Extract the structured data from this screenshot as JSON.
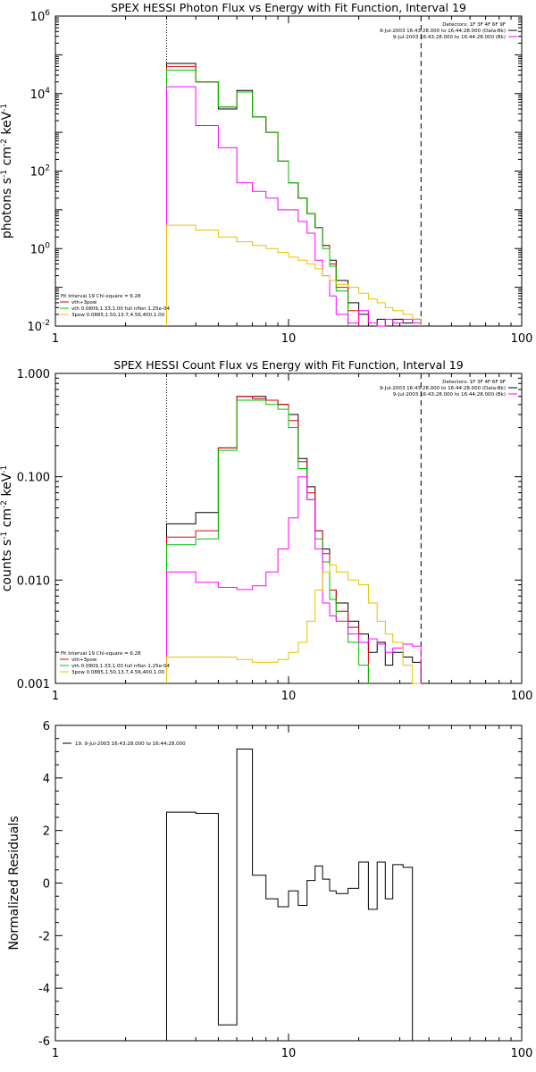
{
  "chart_data": [
    {
      "type": "line",
      "title": "SPEX HESSI Photon Flux vs Energy with Fit Function, Interval 19",
      "ylabel": "photons s^-1 cm^-2 keV^-1",
      "xscale": "log",
      "yscale": "log",
      "xlim": [
        1,
        100
      ],
      "ylim": [
        0.01,
        1000000
      ],
      "xticks": [
        1,
        10,
        100
      ],
      "xtick_labels": [
        "1",
        "10",
        "100"
      ],
      "yticks": [
        0.01,
        1,
        100,
        10000,
        1000000
      ],
      "ytick_labels": [
        "10^-2",
        "10^0",
        "10^2",
        "10^4",
        "10^6"
      ],
      "vlines": [
        {
          "x": 3.0,
          "style": "dotted"
        },
        {
          "x": 37.0,
          "style": "dashed"
        }
      ],
      "legend_top": {
        "lines": [
          "Detectors: 1F 3F 4F 6F 9F",
          "9-Jul-2003 16:43:28.000 to 16:44:28.000 (Data-Bk)",
          "9-Jul-2003 16:43:28.000 to 16:44:28.000 (Bk)"
        ],
        "colors": [
          "#000000",
          "#ff00ff"
        ]
      },
      "legend_bottom": {
        "lines": [
          "Fit Interval 19   Chi-square = 6.28",
          "vth+3pow",
          "vth 0.0809,1.33,1.00  full nflon 1.25e-04",
          "3pow 0.0885,1.50,13.7,4.56,400,1.00"
        ],
        "colors": [
          "#e00000",
          "#00c000",
          "#e8c000"
        ]
      },
      "energy_edges": [
        3.0,
        4.0,
        5.0,
        6.0,
        7.0,
        8.0,
        9.0,
        10.0,
        11.0,
        12.0,
        13.0,
        14.0,
        15.0,
        16.0,
        18.0,
        20.0,
        22.0,
        24.0,
        26.0,
        28.0,
        31.0,
        34.0,
        37.0
      ],
      "series": [
        {
          "values": [
            60000,
            20000,
            4000,
            12000,
            2500,
            1000,
            180,
            50,
            20,
            8,
            3.5,
            1.2,
            0.5,
            0.15,
            0.04,
            0.02,
            0.008,
            0.015,
            0.01,
            0.015,
            0.012,
            0.015
          ],
          "color": "#000000"
        },
        {
          "values": [
            50000,
            20000,
            4500,
            11000,
            2500,
            1000,
            180,
            50,
            20,
            8,
            3.5,
            1.2,
            0.4,
            0.1,
            0.025,
            null,
            null,
            null,
            null,
            null,
            null,
            null
          ],
          "color": "#e00000"
        },
        {
          "values": [
            40000,
            20000,
            4500,
            11000,
            2500,
            1000,
            180,
            50,
            20,
            8,
            3.5,
            1.0,
            0.35,
            0.08,
            null,
            null,
            null,
            null,
            null,
            null,
            null,
            null
          ],
          "color": "#00c000"
        },
        {
          "values": [
            15000,
            1500,
            400,
            50,
            30,
            20,
            10,
            10,
            5,
            2.5,
            0.5,
            0.2,
            0.06,
            0.02,
            0.012,
            0.025,
            0.012,
            0.01,
            0.015,
            0.012,
            0.015,
            0.012
          ],
          "color": "#ff00ff"
        },
        {
          "values": [
            4,
            3,
            2,
            1.5,
            1.2,
            1,
            0.8,
            0.6,
            0.5,
            0.4,
            0.3,
            0.2,
            0.15,
            0.12,
            0.1,
            0.07,
            0.05,
            0.04,
            0.03,
            0.025,
            0.02,
            0.015
          ],
          "color": "#e8c000"
        }
      ]
    },
    {
      "type": "line",
      "title": "SPEX HESSI Count Flux vs Energy with Fit Function, Interval 19",
      "ylabel": "counts s^-1 cm^-2 keV^-1",
      "xscale": "log",
      "yscale": "log",
      "xlim": [
        1,
        100
      ],
      "ylim": [
        0.001,
        1.0
      ],
      "xticks": [
        1,
        10,
        100
      ],
      "xtick_labels": [
        "1",
        "10",
        "100"
      ],
      "yticks": [
        0.001,
        0.01,
        0.1,
        1.0
      ],
      "ytick_labels": [
        "0.001",
        "0.010",
        "0.100",
        "1.000"
      ],
      "vlines": [
        {
          "x": 3.0,
          "style": "dotted"
        },
        {
          "x": 37.0,
          "style": "dashed"
        }
      ],
      "legend_top": {
        "lines": [
          "Detectors: 1F 3F 4F 6F 9F",
          "9-Jul-2003 16:43:28.000 to 16:44:28.000 (Data-Bk)",
          "9-Jul-2003 16:43:28.000 to 16:44:28.000 (Bk)"
        ],
        "colors": [
          "#000000",
          "#ff00ff"
        ]
      },
      "legend_bottom": {
        "lines": [
          "Fit Interval 19   Chi-square = 6.28",
          "vth+3pow",
          "vth 0.0809,1.33,1.00  full nflon 1.25e-04",
          "3pow 0.0885,1.50,13.7,4.56,400,1.00"
        ],
        "colors": [
          "#e00000",
          "#00c000",
          "#e8c000"
        ]
      },
      "energy_edges": [
        3.0,
        4.0,
        5.0,
        6.0,
        7.0,
        8.0,
        9.0,
        10.0,
        11.0,
        12.0,
        13.0,
        14.0,
        15.0,
        16.0,
        18.0,
        20.0,
        22.0,
        24.0,
        26.0,
        28.0,
        31.0,
        34.0,
        37.0
      ],
      "series": [
        {
          "values": [
            0.035,
            0.045,
            0.19,
            0.6,
            0.6,
            0.55,
            0.5,
            0.4,
            0.15,
            0.08,
            0.03,
            0.02,
            0.008,
            0.006,
            0.004,
            0.003,
            0.002,
            0.0025,
            0.0015,
            0.002,
            0.0018,
            0.0016
          ],
          "color": "#000000"
        },
        {
          "values": [
            0.026,
            0.03,
            0.19,
            0.6,
            0.57,
            0.55,
            0.5,
            0.35,
            0.14,
            0.07,
            0.03,
            0.018,
            0.008,
            0.005,
            0.0035,
            0.0025,
            null,
            null,
            null,
            null,
            null,
            null
          ],
          "color": "#e00000"
        },
        {
          "values": [
            0.022,
            0.025,
            0.18,
            0.55,
            0.55,
            0.5,
            0.45,
            0.3,
            0.12,
            0.06,
            0.025,
            0.015,
            0.0065,
            0.004,
            0.0025,
            0.0015,
            null,
            null,
            null,
            null,
            null,
            null
          ],
          "color": "#00c000"
        },
        {
          "values": [
            0.012,
            0.0095,
            0.0085,
            0.0081,
            0.0088,
            0.012,
            0.02,
            0.04,
            0.1,
            0.06,
            0.02,
            0.006,
            0.0045,
            0.004,
            0.003,
            0.0025,
            0.0027,
            0.0024,
            0.002,
            0.0022,
            0.0024,
            0.0023
          ],
          "color": "#ff00ff"
        },
        {
          "values": [
            0.0018,
            0.0018,
            0.0018,
            0.0017,
            0.0016,
            0.0016,
            0.0017,
            0.002,
            0.0025,
            0.004,
            0.008,
            0.012,
            0.014,
            0.012,
            0.01,
            0.009,
            0.006,
            0.004,
            0.003,
            0.0025,
            0.0015,
            0.001
          ],
          "color": "#e8c000"
        }
      ]
    },
    {
      "type": "line",
      "title": "",
      "ylabel": "Normalized Residuals",
      "xscale": "log",
      "yscale": "linear",
      "xlim": [
        1,
        100
      ],
      "ylim": [
        -6,
        6
      ],
      "xticks": [
        1,
        10,
        100
      ],
      "xtick_labels": [
        "1",
        "10",
        "100"
      ],
      "yticks": [
        -6,
        -4,
        -2,
        0,
        2,
        4,
        6
      ],
      "ytick_labels": [
        "-6",
        "-4",
        "-2",
        "0",
        "2",
        "4",
        "6"
      ],
      "legend_top": {
        "lines": [
          "19.  9-Jul-2003 16:43:28.000 to 16:44:28.000"
        ],
        "colors": [
          "#000000"
        ]
      },
      "energy_edges": [
        3.0,
        4.0,
        5.0,
        6.0,
        7.0,
        8.0,
        9.0,
        10.0,
        11.0,
        12.0,
        13.0,
        14.0,
        15.0,
        16.0,
        18.0,
        20.0,
        22.0,
        24.0,
        26.0,
        28.0,
        31.0,
        34.0,
        37.0
      ],
      "series": [
        {
          "values": [
            2.7,
            2.65,
            -5.4,
            5.1,
            0.3,
            -0.6,
            -0.9,
            -0.3,
            -0.85,
            0.1,
            0.65,
            0.15,
            -0.3,
            -0.4,
            -0.2,
            0.8,
            -1.0,
            0.8,
            -0.6,
            0.7,
            0.6,
            -6.0
          ],
          "color": "#000000"
        }
      ]
    }
  ]
}
